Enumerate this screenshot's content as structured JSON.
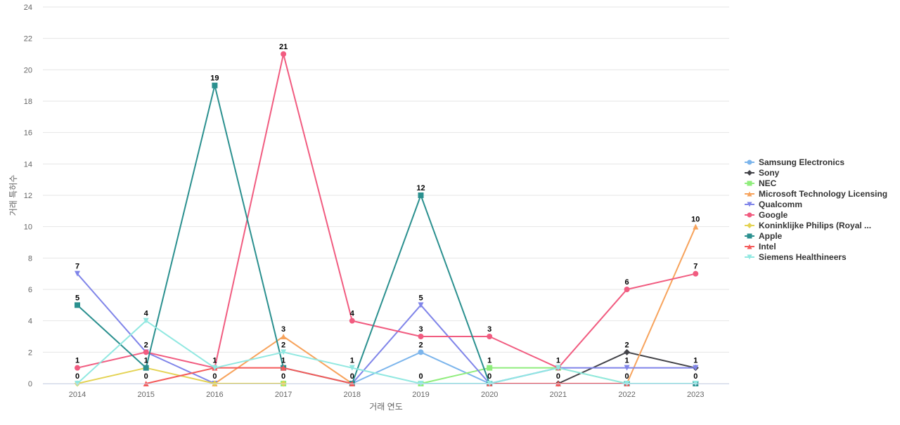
{
  "chart_data": {
    "type": "line",
    "title": "",
    "xlabel": "거래 연도",
    "ylabel": "거래 특허수",
    "ylim": [
      0,
      24
    ],
    "yticks": [
      0,
      2,
      4,
      6,
      8,
      10,
      12,
      14,
      16,
      18,
      20,
      22,
      24
    ],
    "grid": true,
    "legend_position": "right",
    "categories": [
      "2014",
      "2015",
      "2016",
      "2017",
      "2018",
      "2019",
      "2020",
      "2021",
      "2022",
      "2023"
    ],
    "series": [
      {
        "name": "Samsung Electronics",
        "color": "#7cb5ec",
        "marker": "circle",
        "values": [
          null,
          null,
          1,
          null,
          0,
          2,
          0,
          1,
          null,
          null
        ],
        "labels": [
          null,
          null,
          null,
          null,
          null,
          "2",
          null,
          null,
          null,
          null
        ]
      },
      {
        "name": "Sony",
        "color": "#434348",
        "marker": "diamond",
        "values": [
          null,
          null,
          null,
          null,
          null,
          null,
          null,
          0,
          2,
          1
        ],
        "labels": [
          null,
          null,
          null,
          null,
          null,
          null,
          null,
          null,
          "2",
          "1"
        ]
      },
      {
        "name": "NEC",
        "color": "#90ed7d",
        "marker": "square",
        "values": [
          null,
          null,
          null,
          0,
          null,
          0,
          1,
          1,
          0,
          null
        ],
        "labels": [
          null,
          null,
          null,
          null,
          null,
          null,
          "1",
          null,
          null,
          null
        ]
      },
      {
        "name": "Microsoft Technology Licensing",
        "color": "#f7a35c",
        "marker": "triangle",
        "values": [
          null,
          null,
          0,
          3,
          0,
          null,
          null,
          null,
          0,
          10
        ],
        "labels": [
          null,
          null,
          null,
          "3",
          null,
          null,
          null,
          null,
          null,
          "10"
        ]
      },
      {
        "name": "Qualcomm",
        "color": "#8085e9",
        "marker": "triangle-down",
        "values": [
          7,
          2,
          0,
          null,
          0,
          5,
          0,
          1,
          1,
          1
        ],
        "labels": [
          "7",
          null,
          null,
          null,
          null,
          "5",
          null,
          "1",
          "1",
          null
        ]
      },
      {
        "name": "Google",
        "color": "#f15c80",
        "marker": "circle",
        "values": [
          1,
          2,
          1,
          21,
          4,
          3,
          3,
          1,
          6,
          7
        ],
        "labels": [
          "1",
          "2",
          null,
          "21",
          "4",
          "3",
          "3",
          null,
          "6",
          "7"
        ]
      },
      {
        "name": "Koninklijke Philips (Royal ...",
        "color": "#e4d354",
        "marker": "diamond",
        "values": [
          0,
          1,
          0,
          0,
          null,
          null,
          null,
          null,
          null,
          null
        ],
        "labels": [
          "0",
          null,
          "0",
          "0",
          null,
          null,
          null,
          null,
          null,
          null
        ]
      },
      {
        "name": "Apple",
        "color": "#2b908f",
        "marker": "square",
        "values": [
          5,
          1,
          19,
          1,
          0,
          12,
          0,
          null,
          0,
          0
        ],
        "labels": [
          "5",
          "1",
          "19",
          "1",
          null,
          "12",
          null,
          null,
          "0",
          "0"
        ]
      },
      {
        "name": "Intel",
        "color": "#f45b5b",
        "marker": "triangle",
        "values": [
          null,
          0,
          1,
          1,
          0,
          null,
          0,
          0,
          0,
          null
        ],
        "labels": [
          null,
          "0",
          "1",
          null,
          "0",
          null,
          "0",
          "0",
          null,
          null
        ]
      },
      {
        "name": "Siemens Healthineers",
        "color": "#91e8e1",
        "marker": "triangle-down",
        "values": [
          0,
          4,
          1,
          2,
          1,
          0,
          0,
          1,
          0,
          0
        ],
        "labels": [
          null,
          "4",
          null,
          "2",
          "1",
          "0",
          null,
          null,
          null,
          null
        ]
      }
    ]
  }
}
